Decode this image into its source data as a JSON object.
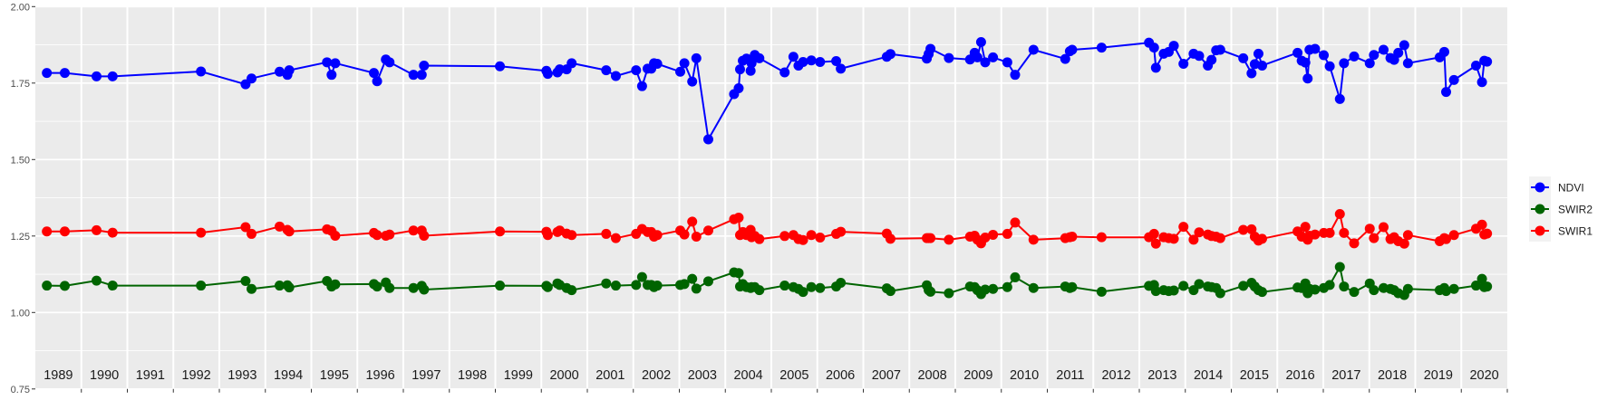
{
  "chart_data": {
    "type": "line",
    "title": "",
    "xlabel": "",
    "ylabel": "",
    "xlim": [
      1989,
      2021
    ],
    "ylim": [
      0.75,
      2.0
    ],
    "yticks": [
      "0.75",
      "1.00",
      "1.25",
      "1.50",
      "1.75",
      "2.00"
    ],
    "ytick_values": [
      0.75,
      1.0,
      1.25,
      1.5,
      1.75,
      2.0
    ],
    "year_labels": [
      "1989",
      "1990",
      "1991",
      "1992",
      "1993",
      "1994",
      "1995",
      "1996",
      "1997",
      "1998",
      "1999",
      "2000",
      "2001",
      "2002",
      "2003",
      "2004",
      "2005",
      "2006",
      "2007",
      "2008",
      "2009",
      "2010",
      "2011",
      "2012",
      "2013",
      "2014",
      "2015",
      "2016",
      "2017",
      "2018",
      "2019",
      "2020"
    ],
    "grid": true,
    "legend_position": "right",
    "x": [
      1989.25,
      1989.64,
      1990.33,
      1990.68,
      1992.6,
      1993.57,
      1993.7,
      1994.31,
      1994.48,
      1994.52,
      1995.34,
      1995.44,
      1995.52,
      1996.36,
      1996.43,
      1996.62,
      1996.7,
      1997.22,
      1997.4,
      1997.45,
      1999.1,
      2000.11,
      2000.14,
      2000.35,
      2000.4,
      2000.55,
      2000.66,
      2001.41,
      2001.62,
      2002.06,
      2002.19,
      2002.31,
      2002.39,
      2002.45,
      2002.52,
      2003.02,
      2003.11,
      2003.28,
      2003.37,
      2003.63,
      2004.19,
      2004.29,
      2004.32,
      2004.38,
      2004.46,
      2004.55,
      2004.57,
      2004.64,
      2004.74,
      2005.29,
      2005.48,
      2005.59,
      2005.69,
      2005.87,
      2006.06,
      2006.41,
      2006.51,
      2007.51,
      2007.59,
      2008.38,
      2008.42,
      2008.46,
      2008.86,
      2009.32,
      2009.42,
      2009.48,
      2009.56,
      2009.65,
      2009.82,
      2010.13,
      2010.3,
      2010.7,
      2011.39,
      2011.49,
      2011.54,
      2012.18,
      2013.21,
      2013.32,
      2013.36,
      2013.53,
      2013.64,
      2013.75,
      2013.96,
      2014.18,
      2014.3,
      2014.49,
      2014.57,
      2014.67,
      2014.76,
      2015.26,
      2015.44,
      2015.51,
      2015.59,
      2015.67,
      2016.44,
      2016.53,
      2016.61,
      2016.66,
      2016.7,
      2016.82,
      2017.01,
      2017.14,
      2017.36,
      2017.45,
      2017.67,
      2018.01,
      2018.1,
      2018.31,
      2018.46,
      2018.54,
      2018.63,
      2018.76,
      2018.84,
      2019.53,
      2019.63,
      2019.67,
      2019.84,
      2020.32,
      2020.45,
      2020.5,
      2020.56
    ],
    "series": [
      {
        "name": "NDVI",
        "color": "#0000ff",
        "values": [
          1.783,
          1.783,
          1.772,
          1.772,
          1.788,
          1.746,
          1.765,
          1.787,
          1.777,
          1.792,
          1.818,
          1.777,
          1.815,
          1.783,
          1.756,
          1.827,
          1.818,
          1.777,
          1.777,
          1.807,
          1.805,
          1.79,
          1.78,
          1.785,
          1.795,
          1.795,
          1.815,
          1.792,
          1.773,
          1.792,
          1.74,
          1.797,
          1.797,
          1.815,
          1.813,
          1.787,
          1.815,
          1.755,
          1.831,
          1.566,
          1.714,
          1.733,
          1.795,
          1.823,
          1.83,
          1.79,
          1.815,
          1.842,
          1.831,
          1.785,
          1.836,
          1.807,
          1.819,
          1.824,
          1.819,
          1.822,
          1.797,
          1.836,
          1.845,
          1.83,
          1.845,
          1.862,
          1.832,
          1.827,
          1.849,
          1.834,
          1.884,
          1.818,
          1.834,
          1.818,
          1.777,
          1.859,
          1.829,
          1.854,
          1.859,
          1.866,
          1.882,
          1.866,
          1.8,
          1.846,
          1.852,
          1.872,
          1.813,
          1.846,
          1.839,
          1.807,
          1.826,
          1.857,
          1.859,
          1.831,
          1.782,
          1.812,
          1.846,
          1.807,
          1.849,
          1.823,
          1.817,
          1.765,
          1.859,
          1.862,
          1.841,
          1.805,
          1.698,
          1.815,
          1.837,
          1.815,
          1.842,
          1.859,
          1.832,
          1.826,
          1.849,
          1.874,
          1.815,
          1.834,
          1.852,
          1.721,
          1.76,
          1.807,
          1.753,
          1.823,
          1.82
        ]
      },
      {
        "name": "SWIR2",
        "color": "#006400",
        "values": [
          1.088,
          1.087,
          1.104,
          1.088,
          1.088,
          1.103,
          1.077,
          1.088,
          1.089,
          1.082,
          1.103,
          1.085,
          1.092,
          1.093,
          1.085,
          1.098,
          1.08,
          1.08,
          1.087,
          1.075,
          1.088,
          1.087,
          1.083,
          1.095,
          1.09,
          1.08,
          1.073,
          1.095,
          1.088,
          1.09,
          1.116,
          1.09,
          1.09,
          1.083,
          1.088,
          1.09,
          1.093,
          1.11,
          1.078,
          1.102,
          1.131,
          1.129,
          1.085,
          1.093,
          1.083,
          1.08,
          1.083,
          1.083,
          1.073,
          1.088,
          1.083,
          1.077,
          1.067,
          1.083,
          1.08,
          1.085,
          1.097,
          1.079,
          1.07,
          1.089,
          1.073,
          1.068,
          1.063,
          1.085,
          1.083,
          1.073,
          1.06,
          1.075,
          1.077,
          1.083,
          1.115,
          1.08,
          1.085,
          1.08,
          1.083,
          1.068,
          1.087,
          1.09,
          1.07,
          1.073,
          1.07,
          1.072,
          1.087,
          1.073,
          1.093,
          1.085,
          1.083,
          1.08,
          1.063,
          1.087,
          1.097,
          1.085,
          1.073,
          1.067,
          1.082,
          1.08,
          1.095,
          1.063,
          1.077,
          1.075,
          1.08,
          1.09,
          1.149,
          1.085,
          1.067,
          1.095,
          1.073,
          1.08,
          1.077,
          1.073,
          1.063,
          1.057,
          1.077,
          1.073,
          1.08,
          1.07,
          1.077,
          1.088,
          1.11,
          1.083,
          1.085
        ]
      },
      {
        "name": "SWIR1",
        "color": "#ff0000",
        "values": [
          1.265,
          1.265,
          1.269,
          1.261,
          1.261,
          1.279,
          1.257,
          1.281,
          1.27,
          1.265,
          1.272,
          1.267,
          1.251,
          1.26,
          1.253,
          1.251,
          1.255,
          1.268,
          1.268,
          1.251,
          1.265,
          1.264,
          1.253,
          1.263,
          1.268,
          1.258,
          1.253,
          1.257,
          1.243,
          1.257,
          1.273,
          1.263,
          1.263,
          1.248,
          1.253,
          1.268,
          1.255,
          1.297,
          1.248,
          1.268,
          1.305,
          1.31,
          1.253,
          1.263,
          1.253,
          1.27,
          1.246,
          1.25,
          1.24,
          1.25,
          1.253,
          1.24,
          1.237,
          1.253,
          1.245,
          1.257,
          1.264,
          1.258,
          1.241,
          1.243,
          1.243,
          1.243,
          1.238,
          1.248,
          1.251,
          1.238,
          1.226,
          1.245,
          1.254,
          1.257,
          1.294,
          1.238,
          1.243,
          1.246,
          1.248,
          1.246,
          1.246,
          1.257,
          1.225,
          1.246,
          1.243,
          1.241,
          1.28,
          1.238,
          1.262,
          1.255,
          1.25,
          1.248,
          1.243,
          1.27,
          1.272,
          1.248,
          1.235,
          1.241,
          1.265,
          1.248,
          1.28,
          1.238,
          1.251,
          1.255,
          1.26,
          1.26,
          1.322,
          1.26,
          1.226,
          1.274,
          1.243,
          1.279,
          1.24,
          1.246,
          1.233,
          1.225,
          1.253,
          1.233,
          1.243,
          1.24,
          1.253,
          1.274,
          1.287,
          1.255,
          1.258
        ]
      }
    ],
    "legend": [
      "NDVI",
      "SWIR2",
      "SWIR1"
    ]
  }
}
